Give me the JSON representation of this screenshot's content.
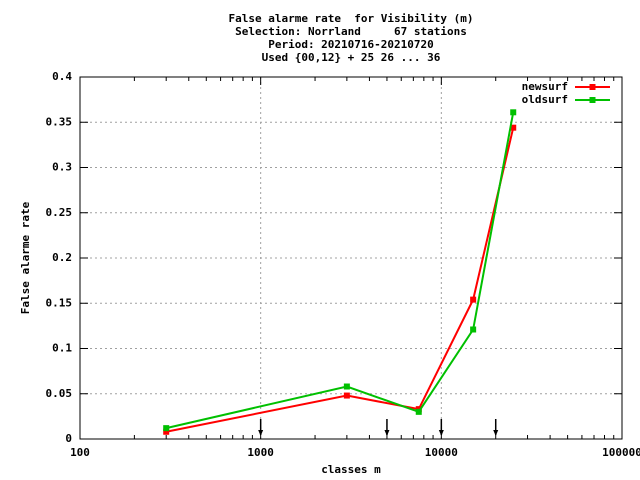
{
  "chart_data": {
    "type": "line",
    "title": [
      "False alarme rate  for Visibility (m)",
      "Selection: Norrland     67 stations",
      "Period: 20210716-20210720",
      "Used {00,12} + 25 26 ... 36"
    ],
    "xlabel": "classes m",
    "ylabel": "False alarme rate",
    "x": [
      300,
      3000,
      7500,
      15000,
      25000
    ],
    "series": [
      {
        "name": "newsurf",
        "color": "#ff0000",
        "values": [
          0.008,
          0.048,
          0.033,
          0.154,
          0.344
        ]
      },
      {
        "name": "oldsurf",
        "color": "#00c000",
        "values": [
          0.012,
          0.058,
          0.03,
          0.121,
          0.361
        ]
      }
    ],
    "arrows_x": [
      1000,
      5000,
      10000,
      20000
    ],
    "xlim": [
      100,
      100000
    ],
    "xticks": [
      100,
      1000,
      10000,
      100000
    ],
    "xscale": "log",
    "ylim": [
      0,
      0.4
    ],
    "yticks": [
      0,
      0.05,
      0.1,
      0.15,
      0.2,
      0.25,
      0.3,
      0.35,
      0.4
    ],
    "grid": true,
    "legend": "upper right"
  }
}
